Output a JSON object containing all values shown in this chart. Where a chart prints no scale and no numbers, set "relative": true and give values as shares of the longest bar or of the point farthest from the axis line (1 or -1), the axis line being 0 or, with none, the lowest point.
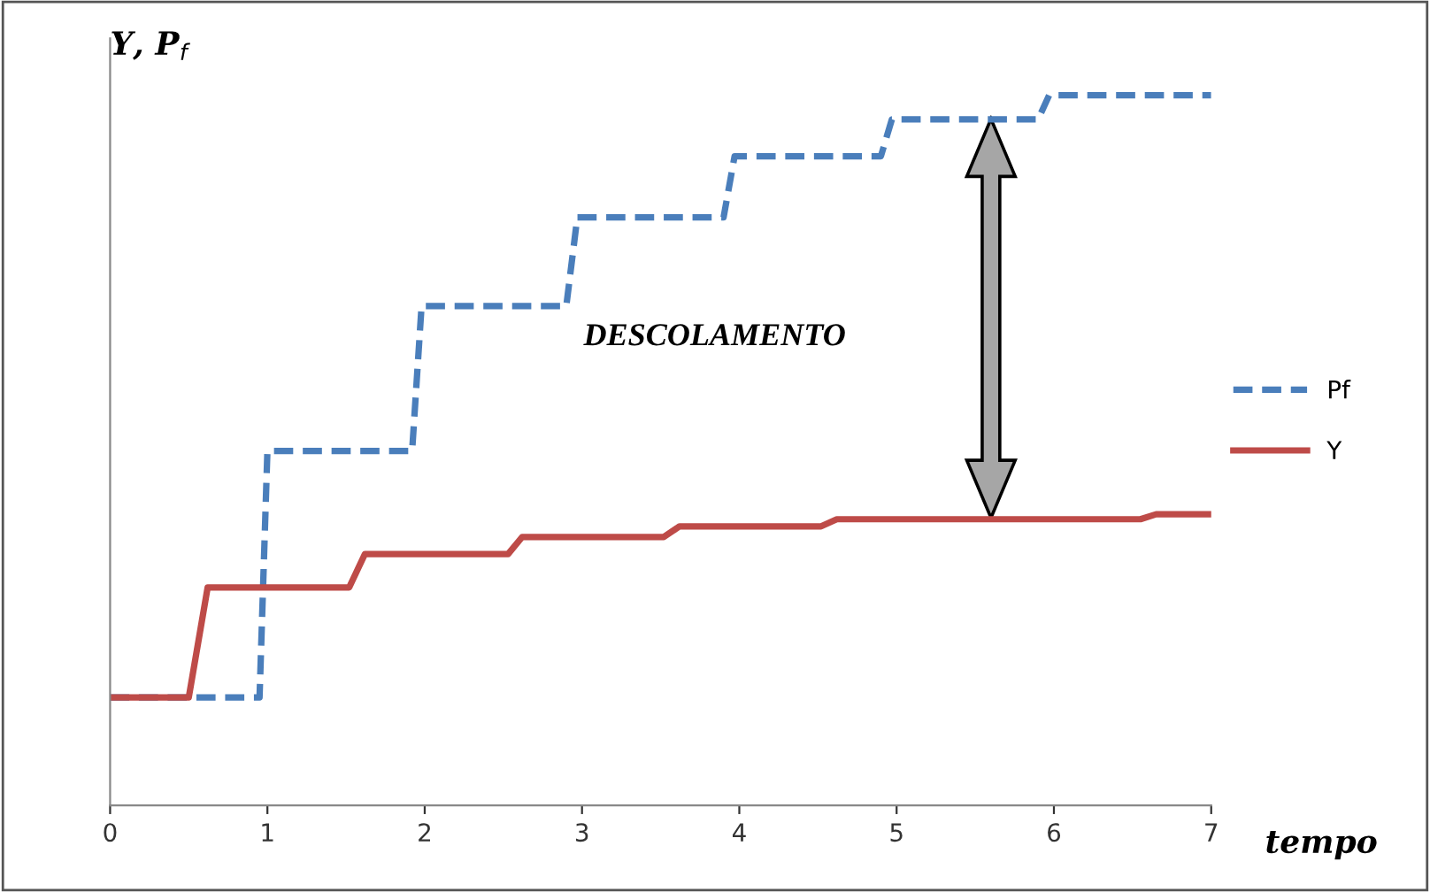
{
  "chart_data": {
    "type": "line",
    "relative": true,
    "xlabel": "tempo",
    "ylabel": "Y, P$_{f}$",
    "xlim": [
      0,
      7
    ],
    "xticks": [
      0,
      1,
      2,
      3,
      4,
      5,
      6,
      7
    ],
    "legend": "right",
    "grid": false,
    "annotations": [
      "DESCOLAMENTO"
    ],
    "series": [
      {
        "name": "Pf",
        "color": "#4a7ebb",
        "line_style": "dashed",
        "x": [
          0,
          0.95,
          1.0,
          1.92,
          1.98,
          2.9,
          2.97,
          3.9,
          3.97,
          4.9,
          4.97,
          5.9,
          5.97,
          7
        ],
        "values": [
          0.152,
          0.152,
          0.499,
          0.499,
          0.703,
          0.703,
          0.828,
          0.828,
          0.914,
          0.914,
          0.966,
          0.966,
          1.0,
          1.0
        ]
      },
      {
        "name": "Y",
        "color": "#be4b48",
        "line_style": "solid",
        "x": [
          0,
          0.5,
          0.62,
          1.52,
          1.62,
          2.53,
          2.62,
          3.52,
          3.62,
          4.52,
          4.62,
          6.55,
          6.65,
          7
        ],
        "values": [
          0.152,
          0.152,
          0.307,
          0.307,
          0.354,
          0.354,
          0.378,
          0.378,
          0.393,
          0.393,
          0.403,
          0.403,
          0.41,
          0.41
        ]
      }
    ]
  }
}
